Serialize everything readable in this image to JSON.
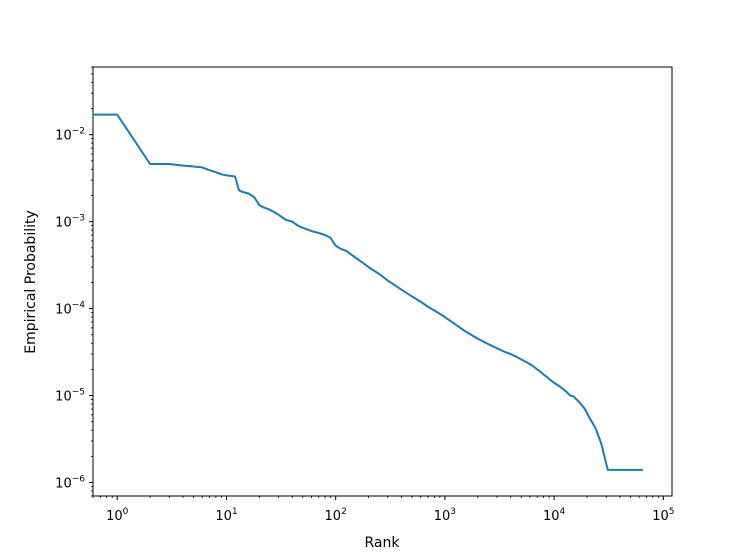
{
  "chart_data": {
    "type": "line",
    "title": "",
    "xlabel": "Rank",
    "ylabel": "Empirical Probability",
    "xscale": "log",
    "yscale": "log",
    "xlim": [
      0.6,
      120000
    ],
    "ylim": [
      7e-07,
      0.06
    ],
    "grid": false,
    "line_color": "#1f77b4",
    "x_major_ticks": [
      {
        "value": 1,
        "base": "10",
        "exp": "0"
      },
      {
        "value": 10,
        "base": "10",
        "exp": "1"
      },
      {
        "value": 100,
        "base": "10",
        "exp": "2"
      },
      {
        "value": 1000,
        "base": "10",
        "exp": "3"
      },
      {
        "value": 10000,
        "base": "10",
        "exp": "4"
      },
      {
        "value": 100000,
        "base": "10",
        "exp": "5"
      }
    ],
    "y_major_ticks": [
      {
        "value": 1e-06,
        "base": "10",
        "exp": "−6"
      },
      {
        "value": 1e-05,
        "base": "10",
        "exp": "−5"
      },
      {
        "value": 0.0001,
        "base": "10",
        "exp": "−4"
      },
      {
        "value": 0.001,
        "base": "10",
        "exp": "−3"
      },
      {
        "value": 0.01,
        "base": "10",
        "exp": "−2"
      }
    ],
    "series": [
      {
        "x": [
          0.6,
          1,
          2,
          3,
          4,
          5,
          6,
          7,
          8,
          9,
          10,
          12,
          13,
          14,
          16,
          18,
          20,
          22,
          24,
          27,
          30,
          35,
          40,
          45,
          50,
          60,
          70,
          80,
          90,
          95,
          100,
          110,
          125,
          150,
          175,
          200,
          250,
          300,
          400,
          500,
          600,
          700,
          800,
          900,
          1000,
          1200,
          1500,
          2000,
          2500,
          3000,
          3500,
          4000,
          4500,
          5000,
          5500,
          6000,
          6500,
          7000,
          7500,
          8000,
          8500,
          9000,
          10000,
          11000,
          12000,
          13000,
          14000,
          15000,
          17000,
          19000,
          21000,
          24000,
          27000,
          31000,
          36000,
          41000,
          48000,
          56000,
          65000
        ],
        "y": [
          0.017,
          0.017,
          0.0046,
          0.0046,
          0.0044,
          0.0043,
          0.0042,
          0.0039,
          0.0037,
          0.0035,
          0.0034,
          0.0033,
          0.0023,
          0.0022,
          0.0021,
          0.0019,
          0.00155,
          0.00145,
          0.0014,
          0.0013,
          0.0012,
          0.00105,
          0.001,
          0.0009,
          0.00085,
          0.00078,
          0.00074,
          0.0007,
          0.00065,
          0.00058,
          0.00053,
          0.00049,
          0.00046,
          0.00039,
          0.00034,
          0.0003,
          0.00025,
          0.00021,
          0.000165,
          0.000138,
          0.00012,
          0.000105,
          9.5e-05,
          8.7e-05,
          8e-05,
          6.8e-05,
          5.6e-05,
          4.5e-05,
          3.9e-05,
          3.5e-05,
          3.2e-05,
          3e-05,
          2.8e-05,
          2.6e-05,
          2.45e-05,
          2.3e-05,
          2.15e-05,
          2e-05,
          1.88e-05,
          1.75e-05,
          1.65e-05,
          1.55e-05,
          1.4e-05,
          1.3e-05,
          1.2e-05,
          1.1e-05,
          1e-05,
          9.8e-06,
          8.4e-06,
          7.1e-06,
          5.6e-06,
          4.2e-06,
          2.8e-06,
          1.4e-06,
          1.4e-06,
          1.4e-06,
          1.4e-06,
          1.4e-06,
          1.4e-06
        ]
      }
    ]
  }
}
